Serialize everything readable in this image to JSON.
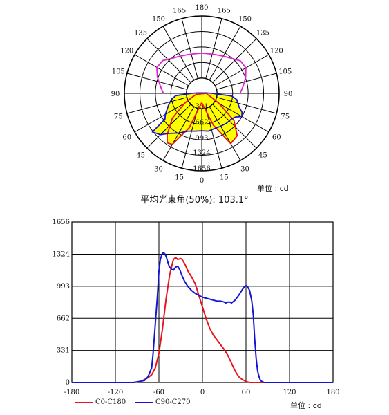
{
  "polar": {
    "unit_label": "单位 : cd",
    "beam_angle_label": "平均光束角(50%): 103.1°",
    "angle_labels": [
      "180",
      "165",
      "150",
      "135",
      "120",
      "105",
      "90",
      "75",
      "60",
      "45",
      "30",
      "15",
      "0",
      "15",
      "30",
      "45",
      "60",
      "75",
      "90",
      "105",
      "120",
      "135",
      "150",
      "165"
    ],
    "ring_labels": [
      "331",
      "662",
      "993",
      "1324",
      "1656"
    ]
  },
  "legend": [
    {
      "name": "C0-C180",
      "color": "#e8141c"
    },
    {
      "name": "C90-C270",
      "color": "#1414d6"
    }
  ],
  "rect": {
    "unit_label": "单位 : cd"
  },
  "chart_data": [
    {
      "type": "polar",
      "rmax": 1656,
      "rings": [
        331,
        662,
        993,
        1324,
        1656
      ],
      "series": [
        {
          "name": "C0-C180",
          "color": "#e8141c",
          "points": [
            [
              0,
              200
            ],
            [
              20,
              720
            ],
            [
              30,
              1240
            ],
            [
              40,
              1180
            ],
            [
              50,
              900
            ],
            [
              60,
              420
            ],
            [
              70,
              200
            ],
            [
              80,
              120
            ],
            [
              90,
              100
            ],
            [
              -80,
              120
            ],
            [
              -70,
              200
            ],
            [
              -60,
              420
            ],
            [
              -50,
              820
            ],
            [
              -40,
              1150
            ],
            [
              -35,
              1290
            ],
            [
              -30,
              1260
            ],
            [
              -20,
              780
            ],
            [
              -10,
              300
            ],
            [
              0,
              200
            ]
          ]
        },
        {
          "name": "C90-C270",
          "color": "#1414d6",
          "points": [
            [
              0,
              800
            ],
            [
              10,
              820
            ],
            [
              20,
              800
            ],
            [
              30,
              810
            ],
            [
              40,
              830
            ],
            [
              50,
              840
            ],
            [
              55,
              880
            ],
            [
              60,
              990
            ],
            [
              65,
              950
            ],
            [
              70,
              850
            ],
            [
              75,
              800
            ],
            [
              80,
              760
            ],
            [
              85,
              640
            ],
            [
              90,
              220
            ],
            [
              95,
              100
            ],
            [
              -95,
              100
            ],
            [
              -90,
              220
            ],
            [
              -85,
              560
            ],
            [
              -80,
              640
            ],
            [
              -75,
              700
            ],
            [
              -70,
              760
            ],
            [
              -65,
              820
            ],
            [
              -60,
              900
            ],
            [
              -55,
              960
            ],
            [
              -52,
              1340
            ],
            [
              -45,
              1250
            ],
            [
              -40,
              1120
            ],
            [
              -35,
              1040
            ],
            [
              -30,
              980
            ],
            [
              -20,
              860
            ],
            [
              -10,
              820
            ],
            [
              0,
              800
            ]
          ]
        },
        {
          "name": "magenta",
          "color": "#e020d0",
          "points": [
            [
              90,
              820
            ],
            [
              100,
              900
            ],
            [
              110,
              1000
            ],
            [
              120,
              1090
            ],
            [
              130,
              1080
            ],
            [
              140,
              980
            ],
            [
              150,
              920
            ],
            [
              160,
              880
            ],
            [
              170,
              860
            ],
            [
              180,
              860
            ],
            [
              -170,
              860
            ],
            [
              -160,
              880
            ],
            [
              -150,
              920
            ],
            [
              -140,
              980
            ],
            [
              -130,
              1090
            ],
            [
              -120,
              1110
            ],
            [
              -110,
              1010
            ],
            [
              -100,
              900
            ],
            [
              -90,
              820
            ]
          ]
        }
      ]
    },
    {
      "type": "line",
      "xlim": [
        -180,
        180
      ],
      "ylim": [
        0,
        1656
      ],
      "xticks": [
        -180,
        -120,
        -60,
        0,
        60,
        120,
        180
      ],
      "yticks": [
        0,
        331,
        662,
        993,
        1324,
        1656
      ],
      "series": [
        {
          "name": "C0-C180",
          "color": "#e8141c",
          "x": [
            -180,
            -95,
            -85,
            -80,
            -75,
            -70,
            -65,
            -60,
            -55,
            -50,
            -45,
            -40,
            -37,
            -34,
            -30,
            -28,
            -24,
            -20,
            -15,
            -10,
            -5,
            0,
            5,
            10,
            15,
            20,
            25,
            30,
            35,
            40,
            45,
            50,
            55,
            60,
            65,
            70,
            75,
            80,
            85,
            90,
            95,
            180
          ],
          "y": [
            0,
            0,
            10,
            30,
            50,
            80,
            150,
            300,
            560,
            870,
            1120,
            1270,
            1290,
            1270,
            1280,
            1270,
            1220,
            1150,
            1090,
            1020,
            900,
            780,
            660,
            560,
            490,
            440,
            390,
            340,
            280,
            200,
            120,
            60,
            30,
            10,
            0,
            0,
            0,
            0,
            0,
            0,
            0,
            0
          ]
        },
        {
          "name": "C90-C270",
          "color": "#1414d6",
          "x": [
            -180,
            -95,
            -80,
            -75,
            -70,
            -68,
            -65,
            -62,
            -60,
            -58,
            -56,
            -54,
            -52,
            -50,
            -48,
            -46,
            -43,
            -40,
            -37,
            -34,
            -31,
            -28,
            -25,
            -20,
            -15,
            -10,
            -5,
            0,
            5,
            10,
            15,
            20,
            25,
            30,
            32,
            35,
            38,
            40,
            45,
            50,
            55,
            58,
            60,
            62,
            65,
            68,
            70,
            72,
            74,
            76,
            78,
            80,
            82,
            85,
            90,
            180
          ],
          "y": [
            0,
            0,
            20,
            60,
            150,
            300,
            600,
            900,
            1150,
            1270,
            1320,
            1340,
            1330,
            1300,
            1250,
            1200,
            1170,
            1160,
            1190,
            1200,
            1160,
            1100,
            1050,
            990,
            950,
            920,
            900,
            880,
            870,
            860,
            850,
            840,
            840,
            830,
            820,
            830,
            830,
            820,
            850,
            900,
            960,
            990,
            1000,
            990,
            950,
            840,
            700,
            450,
            250,
            120,
            60,
            20,
            10,
            0,
            0,
            0
          ]
        }
      ]
    }
  ]
}
